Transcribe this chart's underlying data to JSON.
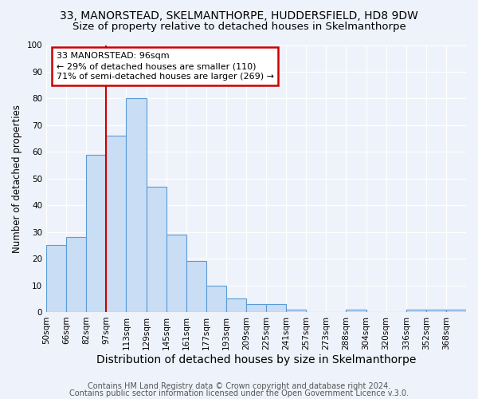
{
  "title": "33, MANORSTEAD, SKELMANTHORPE, HUDDERSFIELD, HD8 9DW",
  "subtitle": "Size of property relative to detached houses in Skelmanthorpe",
  "xlabel": "Distribution of detached houses by size in Skelmanthorpe",
  "ylabel": "Number of detached properties",
  "bin_labels": [
    "50sqm",
    "66sqm",
    "82sqm",
    "97sqm",
    "113sqm",
    "129sqm",
    "145sqm",
    "161sqm",
    "177sqm",
    "193sqm",
    "209sqm",
    "225sqm",
    "241sqm",
    "257sqm",
    "273sqm",
    "288sqm",
    "304sqm",
    "320sqm",
    "336sqm",
    "352sqm",
    "368sqm"
  ],
  "bar_values": [
    25,
    28,
    59,
    66,
    80,
    47,
    29,
    19,
    10,
    5,
    3,
    3,
    1,
    0,
    0,
    1,
    0,
    0,
    1,
    1,
    1
  ],
  "bar_color": "#c9ddf5",
  "bar_edge_color": "#5b9bd5",
  "annotation_title": "33 MANORSTEAD: 96sqm",
  "annotation_line1": "← 29% of detached houses are smaller (110)",
  "annotation_line2": "71% of semi-detached houses are larger (269) →",
  "annotation_box_color": "white",
  "annotation_box_edge_color": "#cc0000",
  "vline_color": "#cc0000",
  "ylim": [
    0,
    100
  ],
  "yticks": [
    0,
    10,
    20,
    30,
    40,
    50,
    60,
    70,
    80,
    90,
    100
  ],
  "background_color": "#eef2fa",
  "grid_color": "white",
  "footer_line1": "Contains HM Land Registry data © Crown copyright and database right 2024.",
  "footer_line2": "Contains public sector information licensed under the Open Government Licence v.3.0.",
  "title_fontsize": 10,
  "subtitle_fontsize": 9.5,
  "xlabel_fontsize": 10,
  "ylabel_fontsize": 8.5,
  "tick_fontsize": 7.5,
  "annotation_fontsize": 8,
  "footer_fontsize": 7
}
